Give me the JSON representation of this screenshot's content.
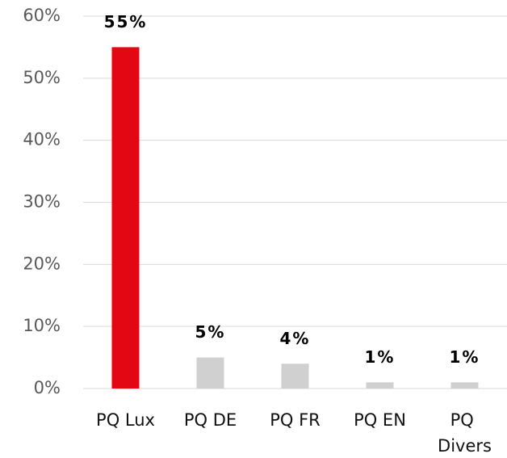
{
  "chart_data": {
    "type": "bar",
    "categories": [
      "PQ Lux",
      "PQ DE",
      "PQ FR",
      "PQ EN",
      "PQ Divers"
    ],
    "values": [
      55,
      5,
      4,
      1,
      1
    ],
    "value_labels": [
      "55%",
      "5%",
      "4%",
      "1%",
      "1%"
    ],
    "colors": [
      "#e30613",
      "#d0d0d0",
      "#d0d0d0",
      "#d0d0d0",
      "#d0d0d0"
    ],
    "ylim": [
      0,
      60
    ],
    "yticks": [
      {
        "value": 0,
        "label": "0%"
      },
      {
        "value": 10,
        "label": "10%"
      },
      {
        "value": 20,
        "label": "20%"
      },
      {
        "value": 30,
        "label": "30%"
      },
      {
        "value": 40,
        "label": "40%"
      },
      {
        "value": 50,
        "label": "50%"
      },
      {
        "value": 60,
        "label": "60%"
      }
    ],
    "grid": true
  }
}
